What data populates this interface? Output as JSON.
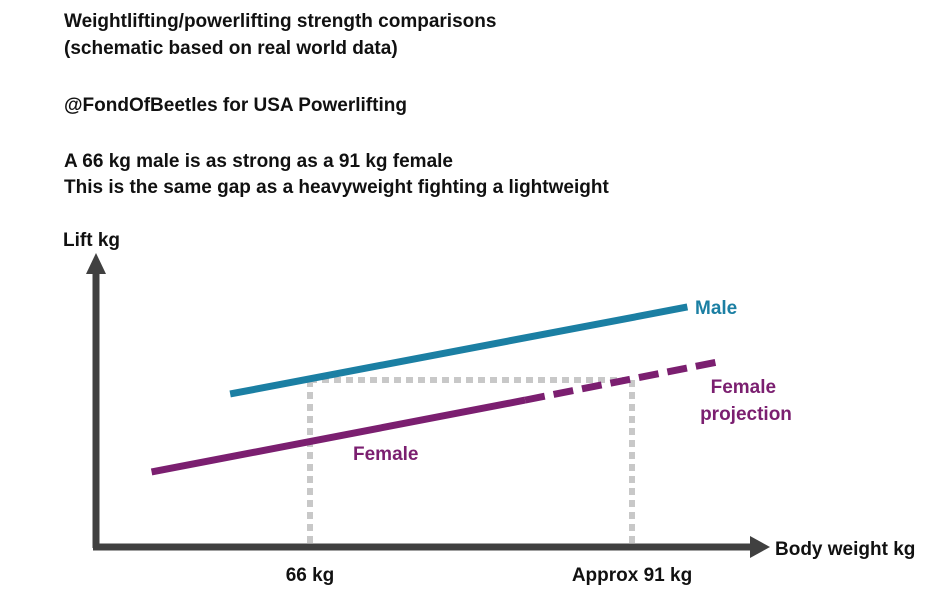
{
  "header": {
    "title_line1": "Weightlifting/powerlifting strength comparisons",
    "title_line2": "(schematic based on real world data)",
    "credit": "@FondOfBeetles for USA Powerlifting",
    "claim_line1": "A 66 kg male is as strong as a 91 kg female",
    "claim_line2": "This is the same gap as a heavyweight fighting a lightweight"
  },
  "chart_data": {
    "type": "line",
    "title": "Weightlifting/powerlifting strength comparisons",
    "xlabel": "Body weight kg",
    "ylabel": "Lift kg",
    "xlim": [
      47,
      102
    ],
    "ylim": [
      0,
      100
    ],
    "grid": false,
    "tick_labels": [
      {
        "x": 66,
        "label": "66 kg"
      },
      {
        "x": 91,
        "label": "Approx 91 kg"
      }
    ],
    "series": [
      {
        "name": "Male",
        "color": "#1b7fa3",
        "style": "solid",
        "points": [
          [
            59.8,
            52.4
          ],
          [
            95.3,
            82.2
          ]
        ]
      },
      {
        "name": "Female",
        "color": "#7b1f70",
        "style": "solid",
        "points": [
          [
            53.7,
            25.7
          ],
          [
            82.7,
            50.3
          ]
        ]
      },
      {
        "name": "Female projection",
        "color": "#7b1f70",
        "style": "dashed",
        "points": [
          [
            82.7,
            50.3
          ],
          [
            97.7,
            63.4
          ]
        ]
      }
    ],
    "reference_lines": {
      "color": "#c8c8c8",
      "equal_lift_level": 57.2,
      "x_markers": [
        66,
        91
      ]
    },
    "axis_color": "#404040"
  }
}
